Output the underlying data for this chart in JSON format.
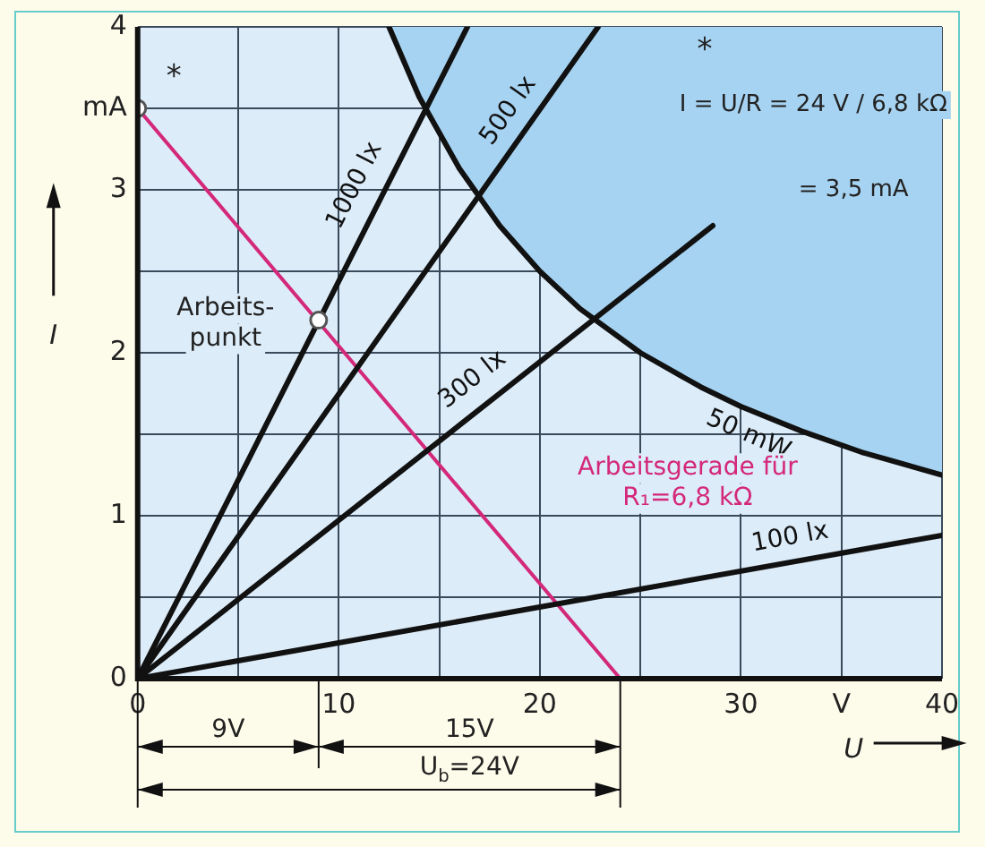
{
  "chart_data": {
    "type": "line",
    "xlabel": "U",
    "ylabel": "I",
    "xlim": [
      0,
      40
    ],
    "ylim": [
      0,
      4
    ],
    "xticks": [
      0,
      {
        "value": 5,
        "label": null
      },
      10,
      {
        "value": 15,
        "label": null
      },
      20,
      {
        "value": 25,
        "label": null
      },
      30,
      {
        "value": 35,
        "label": "V"
      },
      40
    ],
    "yticks": [
      0,
      {
        "value": 0.5,
        "label": null
      },
      1,
      {
        "value": 1.5,
        "label": null
      },
      2,
      {
        "value": 2.5,
        "label": null
      },
      3,
      {
        "value": 3.5,
        "label": "mA"
      },
      4
    ],
    "grid": true,
    "legend": false,
    "series": [
      {
        "name": "1000 lx",
        "color": "#111111",
        "x": [
          0,
          16.4
        ],
        "values": [
          0,
          4
        ]
      },
      {
        "name": "500 lx",
        "color": "#111111",
        "x": [
          0,
          22.9
        ],
        "values": [
          0,
          4
        ]
      },
      {
        "name": "300 lx",
        "color": "#111111",
        "x": [
          0,
          28.6
        ],
        "values": [
          0,
          2.78
        ]
      },
      {
        "name": "100 lx",
        "color": "#111111",
        "x": [
          0,
          40
        ],
        "values": [
          0,
          0.88
        ]
      },
      {
        "name": "50 mW",
        "color": "#111111",
        "x": [
          12.5,
          14,
          16,
          18,
          20,
          22,
          25,
          28,
          30,
          33,
          36,
          40
        ],
        "values": [
          4,
          3.57,
          3.13,
          2.78,
          2.5,
          2.27,
          2,
          1.79,
          1.67,
          1.52,
          1.39,
          1.25
        ],
        "lower": [
          4,
          3.57,
          3.13,
          2.78,
          2.5,
          2.27,
          2,
          1.79,
          1.67,
          1.52,
          1.39,
          1.25
        ],
        "upper": [
          4,
          4,
          4,
          4,
          4,
          4,
          4,
          4,
          4,
          4,
          4,
          4
        ]
      },
      {
        "name": "Arbeitsgerade für\nR₁=6,8 kΩ",
        "color": "#d4287a",
        "x": [
          0,
          24
        ],
        "values": [
          3.5,
          0
        ]
      },
      {
        "type": "scatter",
        "color": "#ffffff",
        "marker": "circle",
        "x": [
          0,
          9
        ],
        "values": [
          3.5,
          2.2
        ]
      }
    ],
    "annotations": [
      {
        "text": "*",
        "x": 0,
        "y": 3.5
      },
      {
        "text": "Arbeits-\npunkt",
        "x": 9,
        "y": 2.2
      },
      "*",
      "I = U/R = 24 V / 6,8 kΩ",
      "= 3,5 mA",
      "9V",
      "15V",
      "U$_{b}$=24V"
    ]
  }
}
